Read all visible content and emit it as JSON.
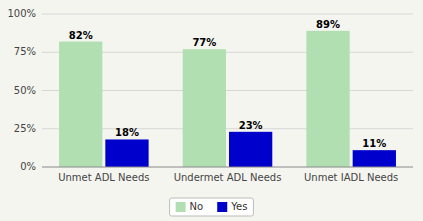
{
  "chart_data": {
    "type": "bar",
    "categories": [
      "Unmet ADL Needs",
      "Undermet ADL Needs",
      "Unmet IADL Needs"
    ],
    "series": [
      {
        "name": "No",
        "color": "#b2dfb2",
        "values": [
          82,
          77,
          89
        ],
        "value_labels": [
          "82%",
          "77%",
          "89%"
        ]
      },
      {
        "name": "Yes",
        "color": "#0000cc",
        "values": [
          18,
          23,
          11
        ],
        "value_labels": [
          "18%",
          "23%",
          "11%"
        ]
      }
    ],
    "ylim": [
      0,
      100
    ],
    "yticks": [
      {
        "value": 0,
        "label": "0%"
      },
      {
        "value": 25,
        "label": "25%"
      },
      {
        "value": 50,
        "label": "50%"
      },
      {
        "value": 75,
        "label": "75%"
      },
      {
        "value": 100,
        "label": "100%"
      }
    ],
    "grid": true,
    "legend": "bottom",
    "data_labels": true
  }
}
